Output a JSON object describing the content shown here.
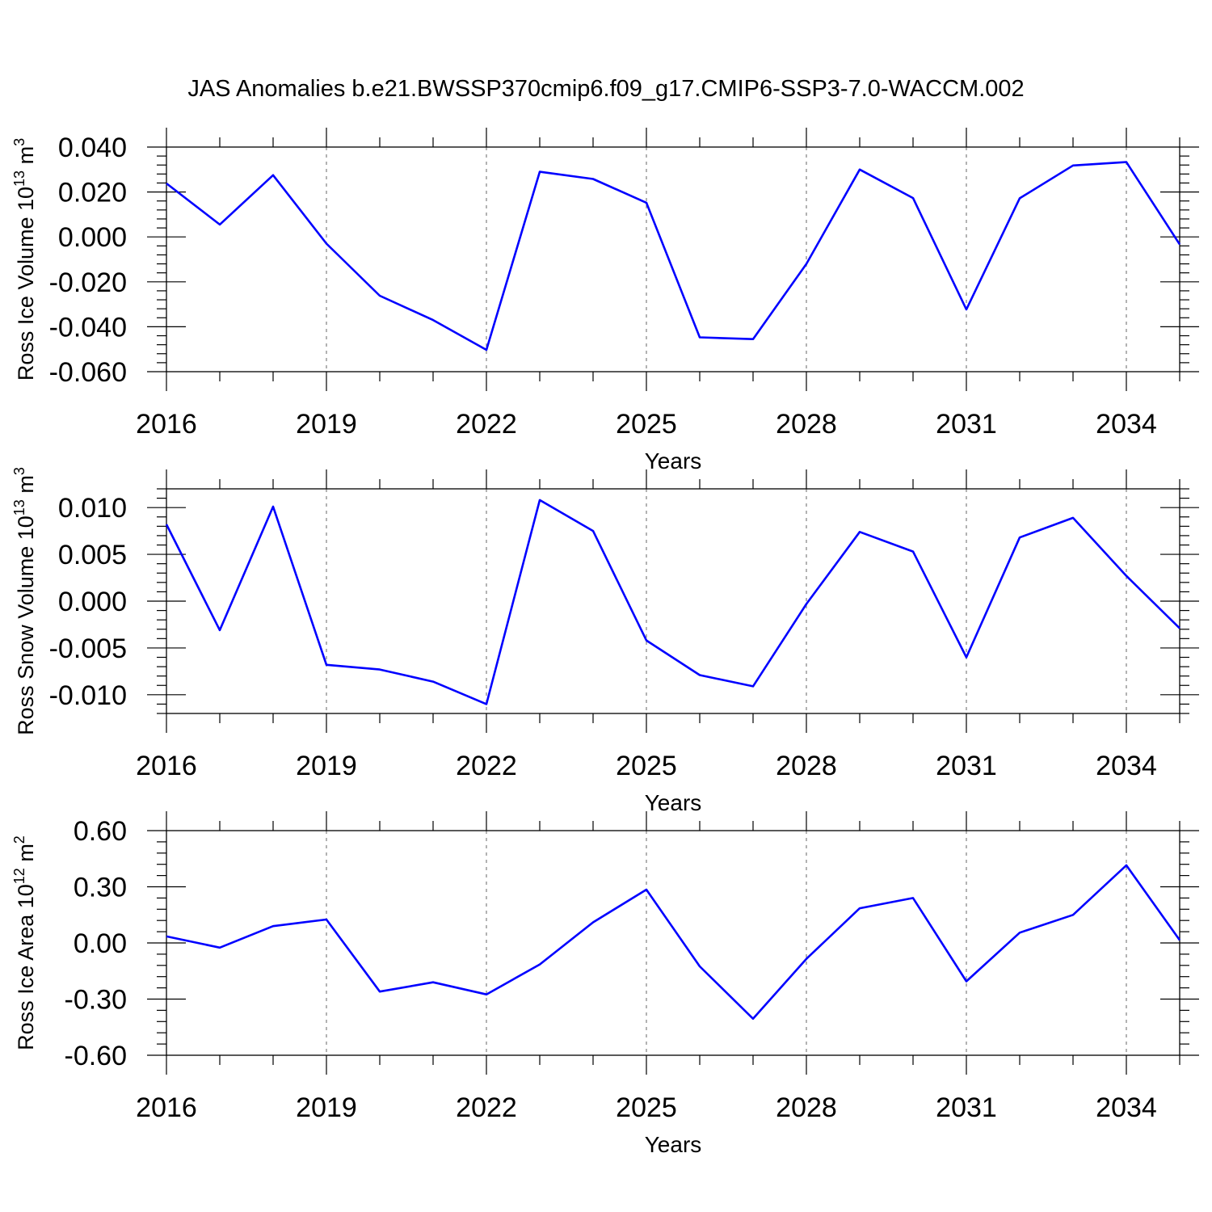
{
  "title": "JAS Anomalies b.e21.BWSSP370cmip6.f09_g17.CMIP6-SSP3-7.0-WACCM.002",
  "colors": {
    "series_line": "#0000ff",
    "axis": "#000000",
    "gridline": "#808080",
    "background": "#ffffff"
  },
  "chart_data": [
    {
      "type": "line",
      "ylabel_main": "Ross Ice Volume 10",
      "ylabel_exp": "13",
      "ylabel_unit": " m",
      "ylabel_unit_exp": "3",
      "xlabel": "Years",
      "xlim": [
        2016,
        2035
      ],
      "ylim": [
        -0.06,
        0.04
      ],
      "xticks": [
        2016,
        2019,
        2022,
        2025,
        2028,
        2031,
        2034
      ],
      "xtick_labels": [
        "2016",
        "2019",
        "2022",
        "2025",
        "2028",
        "2031",
        "2034"
      ],
      "yticks": [
        -0.06,
        -0.04,
        -0.02,
        0,
        0.02,
        0.04
      ],
      "ytick_labels": [
        "-0.060",
        "-0.040",
        "-0.020",
        "0.000",
        "0.020",
        "0.040"
      ],
      "vertical_gridlines": true,
      "x": [
        2016,
        2017,
        2018,
        2019,
        2020,
        2021,
        2022,
        2023,
        2024,
        2025,
        2026,
        2027,
        2028,
        2029,
        2030,
        2031,
        2032,
        2033,
        2034,
        2035
      ],
      "values": [
        0.0238,
        0.0055,
        0.0275,
        -0.003,
        -0.0262,
        -0.037,
        -0.0503,
        0.029,
        0.0258,
        0.0152,
        -0.0447,
        -0.0455,
        -0.012,
        0.03,
        0.0173,
        -0.0323,
        0.0172,
        0.0318,
        0.0333,
        -0.0033
      ]
    },
    {
      "type": "line",
      "ylabel_main": "Ross Snow Volume 10",
      "ylabel_exp": "13",
      "ylabel_unit": " m",
      "ylabel_unit_exp": "3",
      "xlabel": "Years",
      "xlim": [
        2016,
        2035
      ],
      "ylim": [
        -0.012,
        0.012
      ],
      "xticks": [
        2016,
        2019,
        2022,
        2025,
        2028,
        2031,
        2034
      ],
      "xtick_labels": [
        "2016",
        "2019",
        "2022",
        "2025",
        "2028",
        "2031",
        "2034"
      ],
      "yticks": [
        -0.01,
        -0.005,
        0,
        0.005,
        0.01
      ],
      "ytick_labels": [
        "-0.010",
        "-0.005",
        "0.000",
        "0.005",
        "0.010"
      ],
      "vertical_gridlines": true,
      "x": [
        2016,
        2017,
        2018,
        2019,
        2020,
        2021,
        2022,
        2023,
        2024,
        2025,
        2026,
        2027,
        2028,
        2029,
        2030,
        2031,
        2032,
        2033,
        2034,
        2035
      ],
      "values": [
        0.0082,
        -0.0031,
        0.0101,
        -0.0068,
        -0.0073,
        -0.0086,
        -0.011,
        0.0108,
        0.0075,
        -0.0042,
        -0.0079,
        -0.0091,
        -0.0003,
        0.0074,
        0.0053,
        -0.006,
        0.0068,
        0.0089,
        0.0027,
        -0.0029
      ]
    },
    {
      "type": "line",
      "ylabel_main": "Ross Ice Area 10",
      "ylabel_exp": "12",
      "ylabel_unit": " m",
      "ylabel_unit_exp": "2",
      "xlabel": "Years",
      "xlim": [
        2016,
        2035
      ],
      "ylim": [
        -0.6,
        0.6
      ],
      "xticks": [
        2016,
        2019,
        2022,
        2025,
        2028,
        2031,
        2034
      ],
      "xtick_labels": [
        "2016",
        "2019",
        "2022",
        "2025",
        "2028",
        "2031",
        "2034"
      ],
      "yticks": [
        -0.6,
        -0.3,
        0,
        0.3,
        0.6
      ],
      "ytick_labels": [
        "-0.60",
        "-0.30",
        "0.00",
        "0.30",
        "0.60"
      ],
      "vertical_gridlines": true,
      "x": [
        2016,
        2017,
        2018,
        2019,
        2020,
        2021,
        2022,
        2023,
        2024,
        2025,
        2026,
        2027,
        2028,
        2029,
        2030,
        2031,
        2032,
        2033,
        2034,
        2035
      ],
      "values": [
        0.035,
        -0.025,
        0.09,
        0.125,
        -0.26,
        -0.21,
        -0.275,
        -0.115,
        0.11,
        0.285,
        -0.125,
        -0.405,
        -0.085,
        0.185,
        0.24,
        -0.205,
        0.055,
        0.15,
        0.415,
        0.015
      ]
    }
  ]
}
